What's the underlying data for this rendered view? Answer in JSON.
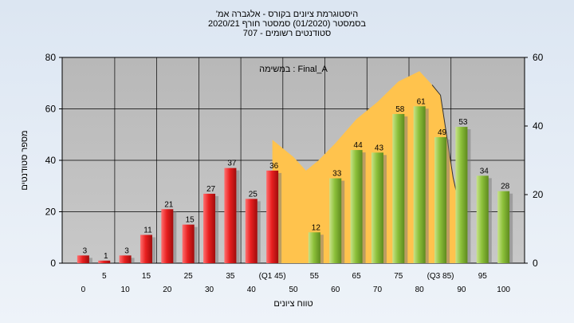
{
  "chart_data": {
    "type": "bar",
    "title_lines": [
      "'היסטוגרמת ציונים בקורס - אלגברה אמ",
      "בסמסטר  (01/2020)  סמסטר חורף  2020/21",
      "סטודנטים רשומים - 707"
    ],
    "annotation": "במשימה : Final_A",
    "xlabel": "טווח ציונים",
    "ylabel": "מספר סטודנטים",
    "ylim": [
      0,
      80
    ],
    "yticks": [
      0,
      20,
      40,
      60,
      80
    ],
    "y2lim": [
      0,
      60
    ],
    "y2ticks": [
      0,
      20,
      40,
      60
    ],
    "x_tick_labels_lower": [
      "0",
      "10",
      "20",
      "30",
      "40",
      "50",
      "60",
      "70",
      "80",
      "90",
      "100"
    ],
    "x_tick_labels_upper": [
      "5",
      "15",
      "25",
      "35",
      "(Q1 45)",
      "55",
      "65",
      "75",
      "(Q3 85)",
      "95"
    ],
    "bars": [
      {
        "x": 0,
        "value": 3,
        "label": "3",
        "group": "fail"
      },
      {
        "x": 5,
        "value": 1,
        "label": "1",
        "group": "fail"
      },
      {
        "x": 10,
        "value": 3,
        "label": "3",
        "group": "fail"
      },
      {
        "x": 15,
        "value": 11,
        "label": "11",
        "group": "fail"
      },
      {
        "x": 20,
        "value": 21,
        "label": "21",
        "group": "fail"
      },
      {
        "x": 25,
        "value": 15,
        "label": "15",
        "group": "fail"
      },
      {
        "x": 30,
        "value": 27,
        "label": "27",
        "group": "fail"
      },
      {
        "x": 35,
        "value": 37,
        "label": "37",
        "group": "fail"
      },
      {
        "x": 40,
        "value": 25,
        "label": "25",
        "group": "fail"
      },
      {
        "x": 45,
        "value": 36,
        "label": "36",
        "group": "fail"
      },
      {
        "x": 55,
        "value": 12,
        "label": "12",
        "group": "pass"
      },
      {
        "x": 60,
        "value": 33,
        "label": "33",
        "group": "pass"
      },
      {
        "x": 65,
        "value": 44,
        "label": "44",
        "group": "pass"
      },
      {
        "x": 70,
        "value": 43,
        "label": "43",
        "group": "pass"
      },
      {
        "x": 75,
        "value": 58,
        "label": "58",
        "group": "pass"
      },
      {
        "x": 80,
        "value": 61,
        "label": "61",
        "group": "pass"
      },
      {
        "x": 85,
        "value": 49,
        "label": "49",
        "group": "pass"
      },
      {
        "x": 90,
        "value": 53,
        "label": "53",
        "group": "pass"
      },
      {
        "x": 95,
        "value": 34,
        "label": "34",
        "group": "pass"
      },
      {
        "x": 100,
        "value": 28,
        "label": "28",
        "group": "pass"
      }
    ],
    "area": {
      "axis": "secondary",
      "points": [
        [
          45,
          36
        ],
        [
          50,
          31
        ],
        [
          53,
          27
        ],
        [
          56,
          30
        ],
        [
          60,
          35
        ],
        [
          65,
          42
        ],
        [
          70,
          47
        ],
        [
          75,
          53
        ],
        [
          80,
          56
        ],
        [
          83,
          52
        ],
        [
          85,
          49
        ],
        [
          88,
          25
        ],
        [
          90,
          14
        ]
      ]
    },
    "colors": {
      "plot_bg": "#c0c0c0",
      "fail_bar": "#e02020",
      "pass_bar": "#8cc03a",
      "area": "#ffc34d",
      "grid": "#000000"
    }
  }
}
